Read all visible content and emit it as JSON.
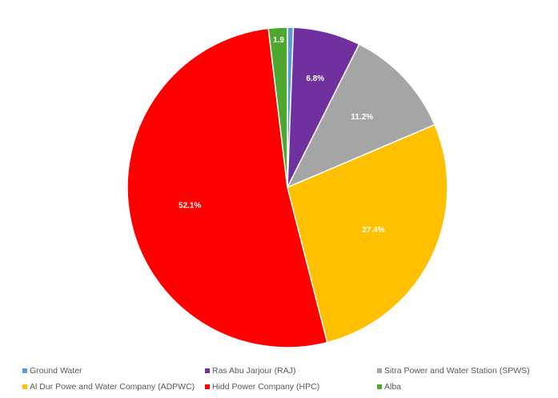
{
  "chart_data": {
    "type": "pie",
    "categories": [
      "Ground Water",
      "Ras Abu Jarjour (RAJ)",
      "Sitra Power and Water Station (SPWS)",
      "Al Dur Powe and Water Company (ADPWC)",
      "Hidd Power Company (HPC)",
      "Alba"
    ],
    "values": [
      0.6,
      6.8,
      11.2,
      27.4,
      52.1,
      1.9
    ],
    "data_labels": [
      "",
      "6.8%",
      "11.2%",
      "27.4%",
      "52.1%",
      "1.9"
    ],
    "colors": [
      "#5B9BD5",
      "#7030A0",
      "#A5A5A5",
      "#FFC000",
      "#FF0000",
      "#4EA72E"
    ],
    "start_angle": "12 o'clock",
    "direction": "clockwise",
    "legend_placement": "bottom"
  }
}
